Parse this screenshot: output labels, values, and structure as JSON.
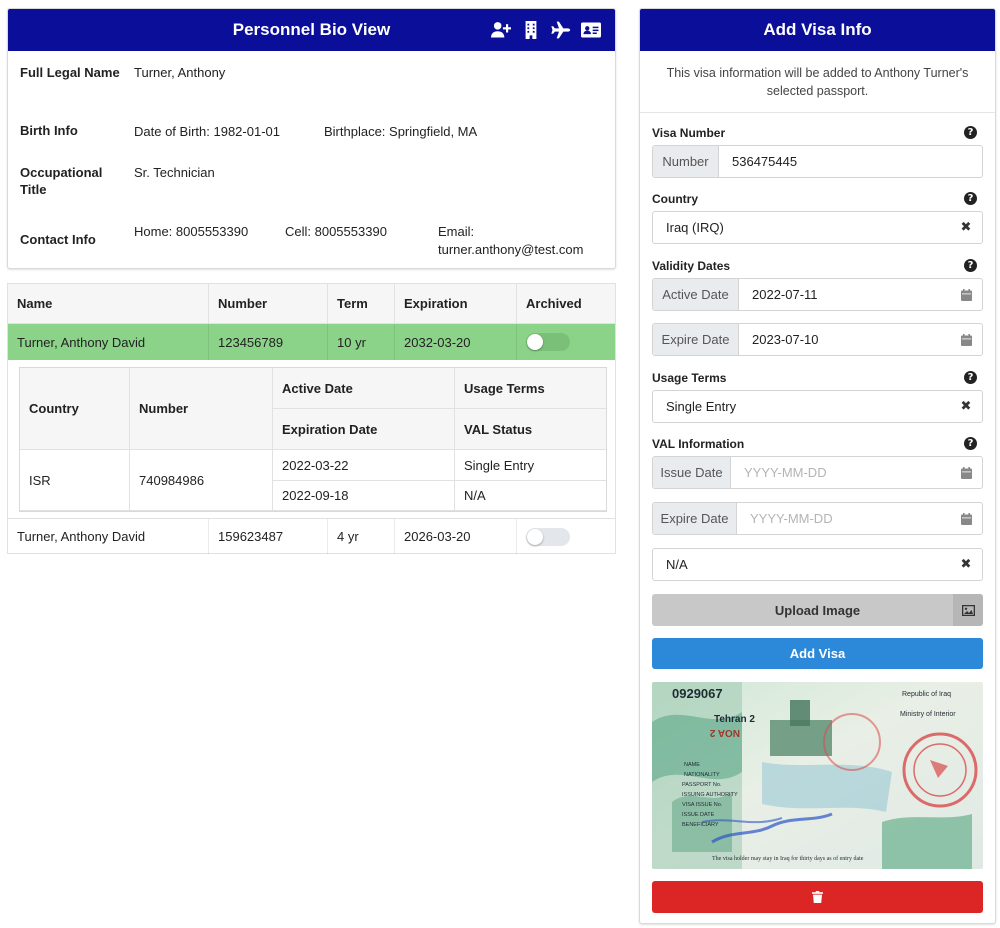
{
  "bio": {
    "title": "Personnel Bio View",
    "icons": [
      "user-plus-icon",
      "hotel-icon",
      "plane-icon",
      "id-card-icon"
    ],
    "full_name_label": "Full Legal Name",
    "full_name": "Turner, Anthony",
    "birth_label": "Birth Info",
    "dob": "Date of Birth: 1982-01-01",
    "birthplace": "Birthplace: Springfield, MA",
    "occupation_label": "Occupational Title",
    "occupation": "Sr. Technician",
    "contact_label": "Contact Info",
    "home": "Home: 8005553390",
    "cell": "Cell: 8005553390",
    "email_label": "Email:",
    "email": "turner.anthony@test.com"
  },
  "passports": {
    "columns": [
      "Name",
      "Number",
      "Term",
      "Expiration",
      "Archived"
    ],
    "rows": [
      {
        "name": "Turner, Anthony David",
        "number": "123456789",
        "term": "10 yr",
        "expiration": "2032-03-20",
        "archived": false,
        "selected": true
      },
      {
        "name": "Turner, Anthony David",
        "number": "159623487",
        "term": "4 yr",
        "expiration": "2026-03-20",
        "archived": false,
        "selected": false
      }
    ],
    "visas": {
      "headers": {
        "country": "Country",
        "number": "Number",
        "active_date": "Active Date",
        "usage_terms": "Usage Terms",
        "expiration_date": "Expiration Date",
        "val_status": "VAL Status"
      },
      "rows": [
        {
          "country": "ISR",
          "number": "740984986",
          "active_date": "2022-03-22",
          "usage_terms": "Single Entry",
          "expiration_date": "2022-09-18",
          "val_status": "N/A"
        }
      ]
    }
  },
  "visa_form": {
    "title": "Add Visa Info",
    "intro": "This visa information will be added to Anthony Turner's selected passport.",
    "visa_number_label": "Visa Number",
    "number_addon": "Number",
    "number_value": "536475445",
    "country_label": "Country",
    "country_value": "Iraq (IRQ)",
    "validity_label": "Validity Dates",
    "active_addon": "Active Date",
    "active_value": "2022-07-11",
    "expire_addon": "Expire Date",
    "expire_value": "2023-07-10",
    "usage_label": "Usage Terms",
    "usage_value": "Single Entry",
    "val_label": "VAL Information",
    "issue_addon": "Issue Date",
    "issue_placeholder": "YYYY-MM-DD",
    "val_expire_addon": "Expire Date",
    "val_expire_placeholder": "YYYY-MM-DD",
    "val_status_value": "N/A",
    "help_glyph": "?",
    "clear_glyph": "✖",
    "upload_label": "Upload Image",
    "add_label": "Add Visa",
    "image_text": {
      "number": "0929067",
      "city": "Tehran 2",
      "stamp": "NOA 2",
      "republic": "Republic of Iraq",
      "ministry": "Ministry of Interior",
      "fields": [
        "NAME",
        "NATIONALITY",
        "PASSPORT No.",
        "ISSUING AUTHORITY",
        "VISA ISSUE No.",
        "ISSUE DATE",
        "BENEFICIARY"
      ],
      "footer": "The visa holder may stay in Iraq for thirty days as of entry date"
    }
  }
}
